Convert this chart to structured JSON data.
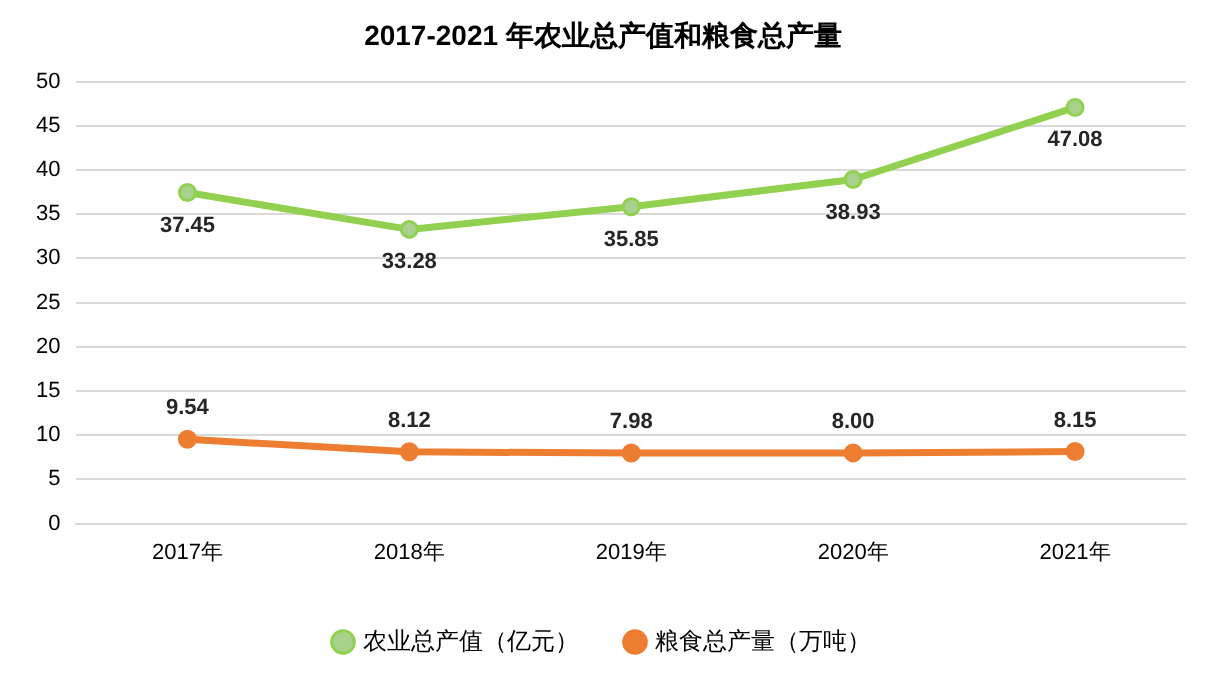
{
  "chart_data": {
    "type": "line",
    "title": "2017-2021 年农业总产值和粮食总产量",
    "categories": [
      "2017年",
      "2018年",
      "2019年",
      "2020年",
      "2021年"
    ],
    "series": [
      {
        "name": "农业总产值（亿元）",
        "color": "#92d050",
        "values": [
          37.45,
          33.28,
          35.85,
          38.93,
          47.08
        ],
        "value_labels": [
          "37.45",
          "33.28",
          "35.85",
          "38.93",
          "47.08"
        ]
      },
      {
        "name": "粮食总产量（万吨）",
        "color": "#ed7d31",
        "values": [
          9.54,
          8.12,
          7.98,
          8.0,
          8.15
        ],
        "value_labels": [
          "9.54",
          "8.12",
          "7.98",
          "8.00",
          "8.15"
        ]
      }
    ],
    "ylim": [
      0,
      50
    ],
    "yticks": [
      0,
      5,
      10,
      15,
      20,
      25,
      30,
      35,
      40,
      45,
      50
    ],
    "grid": "y",
    "legend": "bottom",
    "marker": "circle",
    "line_style": "solid"
  }
}
